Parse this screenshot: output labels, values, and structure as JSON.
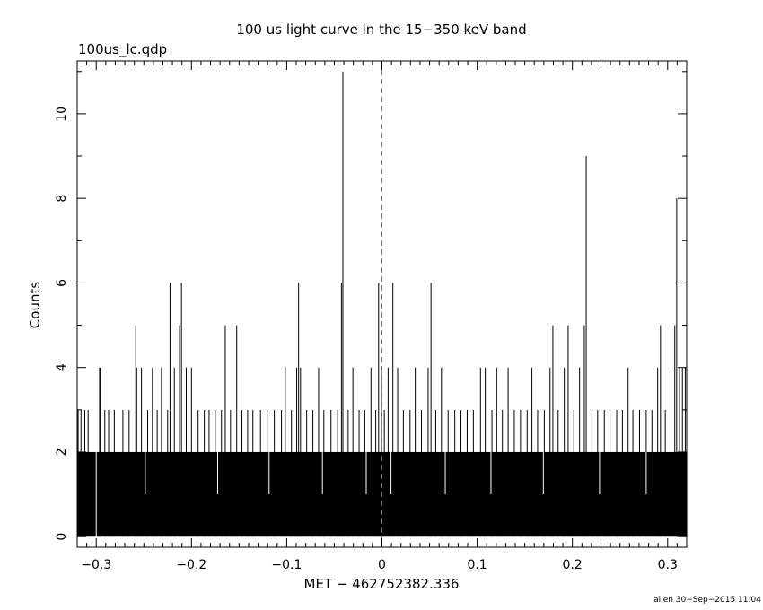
{
  "chart_data": {
    "type": "bar",
    "title": "100 us light curve in the 15−350 keV band",
    "file_label": "100us_lc.qdp",
    "xlabel": "MET − 462752382.336",
    "ylabel": "Counts",
    "footer": "allen 30−Sep−2015 11:04",
    "xlim": [
      -0.32,
      0.32
    ],
    "ylim": [
      -0.25,
      11.25
    ],
    "x_ticks": [
      -0.3,
      -0.2,
      -0.1,
      0,
      0.1,
      0.2,
      0.3
    ],
    "x_tick_labels": [
      "−0.3",
      "−0.2",
      "−0.1",
      "0",
      "0.1",
      "0.2",
      "0.3"
    ],
    "y_ticks": [
      0,
      2,
      4,
      6,
      8,
      10
    ],
    "y_tick_labels": [
      "0",
      "2",
      "4",
      "6",
      "8",
      "10"
    ],
    "bin_width": 0.0001,
    "baseline_level": 2,
    "trigger_line_x": 0,
    "trigger_line_color": "#1a8fc4",
    "series_color": "#000000",
    "spikes": [
      {
        "x": -0.319,
        "y": 3
      },
      {
        "x": -0.316,
        "y": 3
      },
      {
        "x": -0.312,
        "y": 3
      },
      {
        "x": -0.3085,
        "y": 3
      },
      {
        "x": -0.2965,
        "y": 4
      },
      {
        "x": -0.2955,
        "y": 4
      },
      {
        "x": -0.291,
        "y": 3
      },
      {
        "x": -0.287,
        "y": 3
      },
      {
        "x": -0.281,
        "y": 3
      },
      {
        "x": -0.272,
        "y": 3
      },
      {
        "x": -0.2655,
        "y": 3
      },
      {
        "x": -0.2585,
        "y": 5
      },
      {
        "x": -0.2575,
        "y": 4
      },
      {
        "x": -0.2525,
        "y": 4
      },
      {
        "x": -0.246,
        "y": 3
      },
      {
        "x": -0.241,
        "y": 4
      },
      {
        "x": -0.236,
        "y": 3
      },
      {
        "x": -0.2315,
        "y": 4
      },
      {
        "x": -0.225,
        "y": 3
      },
      {
        "x": -0.2225,
        "y": 6
      },
      {
        "x": -0.218,
        "y": 4
      },
      {
        "x": -0.2125,
        "y": 5
      },
      {
        "x": -0.2105,
        "y": 6
      },
      {
        "x": -0.2055,
        "y": 4
      },
      {
        "x": -0.2,
        "y": 4
      },
      {
        "x": -0.193,
        "y": 3
      },
      {
        "x": -0.1865,
        "y": 3
      },
      {
        "x": -0.1815,
        "y": 3
      },
      {
        "x": -0.175,
        "y": 3
      },
      {
        "x": -0.1685,
        "y": 3
      },
      {
        "x": -0.1645,
        "y": 5
      },
      {
        "x": -0.159,
        "y": 3
      },
      {
        "x": -0.1525,
        "y": 5
      },
      {
        "x": -0.147,
        "y": 3
      },
      {
        "x": -0.141,
        "y": 3
      },
      {
        "x": -0.1355,
        "y": 3
      },
      {
        "x": -0.1275,
        "y": 3
      },
      {
        "x": -0.1205,
        "y": 3
      },
      {
        "x": -0.113,
        "y": 3
      },
      {
        "x": -0.1055,
        "y": 3
      },
      {
        "x": -0.1015,
        "y": 4
      },
      {
        "x": -0.095,
        "y": 3
      },
      {
        "x": -0.0895,
        "y": 4
      },
      {
        "x": -0.0875,
        "y": 6
      },
      {
        "x": -0.0855,
        "y": 4
      },
      {
        "x": -0.079,
        "y": 3
      },
      {
        "x": -0.0725,
        "y": 3
      },
      {
        "x": -0.0665,
        "y": 4
      },
      {
        "x": -0.061,
        "y": 3
      },
      {
        "x": -0.0535,
        "y": 3
      },
      {
        "x": -0.0465,
        "y": 3
      },
      {
        "x": -0.0425,
        "y": 6
      },
      {
        "x": -0.041,
        "y": 11
      },
      {
        "x": -0.0355,
        "y": 3
      },
      {
        "x": -0.0305,
        "y": 4
      },
      {
        "x": -0.024,
        "y": 3
      },
      {
        "x": -0.018,
        "y": 3
      },
      {
        "x": -0.0115,
        "y": 4
      },
      {
        "x": -0.0065,
        "y": 3
      },
      {
        "x": -0.0035,
        "y": 6
      },
      {
        "x": -0.0005,
        "y": 4
      },
      {
        "x": 0.0025,
        "y": 3
      },
      {
        "x": 0.0065,
        "y": 4
      },
      {
        "x": 0.0115,
        "y": 6
      },
      {
        "x": 0.0165,
        "y": 4
      },
      {
        "x": 0.0225,
        "y": 3
      },
      {
        "x": 0.0295,
        "y": 3
      },
      {
        "x": 0.035,
        "y": 4
      },
      {
        "x": 0.0415,
        "y": 3
      },
      {
        "x": 0.0485,
        "y": 4
      },
      {
        "x": 0.0515,
        "y": 6
      },
      {
        "x": 0.0565,
        "y": 3
      },
      {
        "x": 0.0625,
        "y": 4
      },
      {
        "x": 0.0695,
        "y": 3
      },
      {
        "x": 0.0765,
        "y": 3
      },
      {
        "x": 0.083,
        "y": 3
      },
      {
        "x": 0.0895,
        "y": 3
      },
      {
        "x": 0.096,
        "y": 3
      },
      {
        "x": 0.1035,
        "y": 4
      },
      {
        "x": 0.1085,
        "y": 4
      },
      {
        "x": 0.1155,
        "y": 3
      },
      {
        "x": 0.1205,
        "y": 4
      },
      {
        "x": 0.1265,
        "y": 3
      },
      {
        "x": 0.1325,
        "y": 4
      },
      {
        "x": 0.139,
        "y": 3
      },
      {
        "x": 0.1455,
        "y": 3
      },
      {
        "x": 0.1525,
        "y": 3
      },
      {
        "x": 0.1575,
        "y": 4
      },
      {
        "x": 0.1635,
        "y": 3
      },
      {
        "x": 0.1705,
        "y": 3
      },
      {
        "x": 0.1765,
        "y": 4
      },
      {
        "x": 0.1795,
        "y": 5
      },
      {
        "x": 0.185,
        "y": 3
      },
      {
        "x": 0.1915,
        "y": 4
      },
      {
        "x": 0.1955,
        "y": 5
      },
      {
        "x": 0.2015,
        "y": 3
      },
      {
        "x": 0.2075,
        "y": 4
      },
      {
        "x": 0.2125,
        "y": 5
      },
      {
        "x": 0.2145,
        "y": 9
      },
      {
        "x": 0.2205,
        "y": 3
      },
      {
        "x": 0.2265,
        "y": 3
      },
      {
        "x": 0.2335,
        "y": 3
      },
      {
        "x": 0.2395,
        "y": 3
      },
      {
        "x": 0.2465,
        "y": 3
      },
      {
        "x": 0.2525,
        "y": 3
      },
      {
        "x": 0.2585,
        "y": 4
      },
      {
        "x": 0.2635,
        "y": 3
      },
      {
        "x": 0.2705,
        "y": 3
      },
      {
        "x": 0.2775,
        "y": 3
      },
      {
        "x": 0.2835,
        "y": 3
      },
      {
        "x": 0.2895,
        "y": 4
      },
      {
        "x": 0.2925,
        "y": 5
      },
      {
        "x": 0.2975,
        "y": 3
      },
      {
        "x": 0.3035,
        "y": 4
      },
      {
        "x": 0.3075,
        "y": 5
      },
      {
        "x": 0.3095,
        "y": 8
      },
      {
        "x": 0.3125,
        "y": 4
      },
      {
        "x": 0.3155,
        "y": 4
      },
      {
        "x": 0.3185,
        "y": 4
      }
    ],
    "gaps": [
      {
        "x": -0.3,
        "y": 0
      },
      {
        "x": -0.2485,
        "y": 1
      },
      {
        "x": -0.1725,
        "y": 1
      },
      {
        "x": -0.1185,
        "y": 1
      },
      {
        "x": -0.0625,
        "y": 1
      },
      {
        "x": -0.0165,
        "y": 1
      },
      {
        "x": 0.0095,
        "y": 1
      },
      {
        "x": 0.0665,
        "y": 1
      },
      {
        "x": 0.1145,
        "y": 1
      },
      {
        "x": 0.1695,
        "y": 1
      },
      {
        "x": 0.2285,
        "y": 1
      },
      {
        "x": 0.2775,
        "y": 1
      }
    ]
  }
}
